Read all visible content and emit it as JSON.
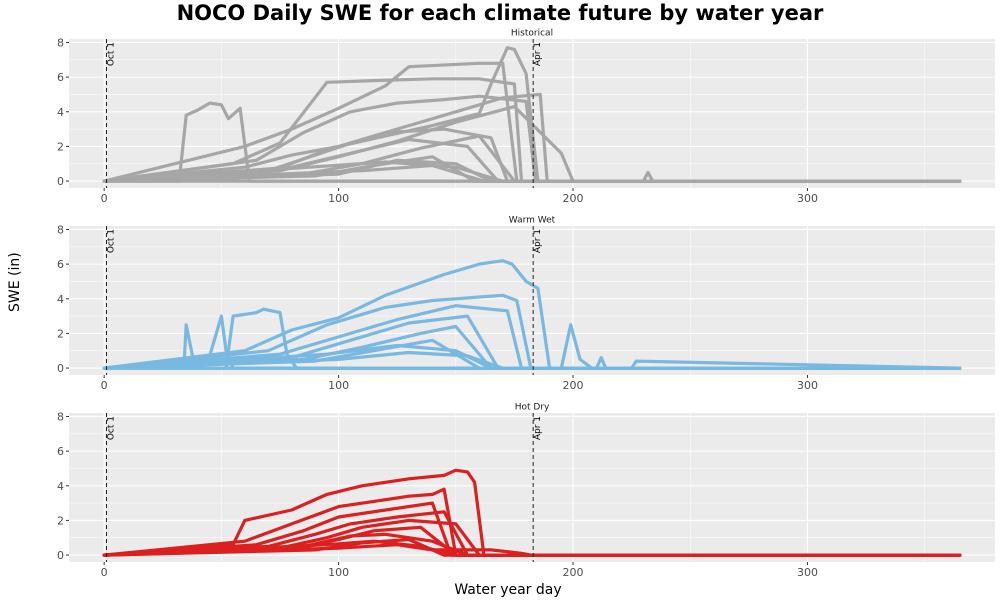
{
  "title": "NOCO Daily SWE for each climate future by water year",
  "xlabel": "Water year day",
  "ylabel": "SWE (in)",
  "chart_data": {
    "type": "line",
    "title": "NOCO Daily SWE for each climate future by water year",
    "xlabel": "Water year day",
    "ylabel": "SWE (in)",
    "xlim": [
      -15,
      380
    ],
    "ylim": [
      -0.4,
      8.2
    ],
    "x_ticks": [
      0,
      100,
      200,
      300
    ],
    "y_ticks": [
      0,
      2,
      4,
      6,
      8
    ],
    "grid": true,
    "vlines": [
      {
        "x": 1,
        "label": "Oct 1",
        "style": "dashed"
      },
      {
        "x": 183,
        "label": "Apr 1",
        "style": "dashed"
      }
    ],
    "panels": [
      {
        "name": "Historical",
        "color": "#a6a6a6",
        "series": [
          {
            "x": [
              0,
              32,
              35,
              40,
              45,
              50,
              53,
              58,
              62,
              200,
              365
            ],
            "y": [
              0,
              0,
              3.8,
              4.1,
              4.5,
              4.4,
              3.6,
              4.2,
              0,
              0,
              0
            ]
          },
          {
            "x": [
              0,
              60,
              80,
              100,
              120,
              140,
              160,
              165,
              172,
              175,
              180,
              185,
              200
            ],
            "y": [
              0,
              0.8,
              1.5,
              2.0,
              2.6,
              3.2,
              3.9,
              5.6,
              7.7,
              7.6,
              6.2,
              0,
              0
            ]
          },
          {
            "x": [
              0,
              55,
              75,
              95,
              115,
              140,
              160,
              175,
              178,
              365
            ],
            "y": [
              0,
              1.0,
              2.2,
              5.7,
              5.8,
              5.9,
              5.9,
              5.6,
              0,
              0
            ]
          },
          {
            "x": [
              0,
              60,
              80,
              100,
              120,
              130,
              160,
              170,
              176,
              365
            ],
            "y": [
              0,
              2.0,
              3.0,
              4.2,
              5.5,
              6.6,
              6.8,
              6.8,
              0,
              0
            ]
          },
          {
            "x": [
              0,
              65,
              85,
              105,
              125,
              145,
              160,
              180,
              184,
              200,
              365
            ],
            "y": [
              0,
              1.2,
              2.8,
              4.0,
              4.5,
              4.7,
              4.9,
              4.6,
              0,
              0,
              0
            ]
          },
          {
            "x": [
              0,
              70,
              90,
              110,
              130,
              150,
              170,
              186,
              189,
              200,
              365
            ],
            "y": [
              0,
              0.6,
              1.5,
              2.4,
              3.2,
              4.0,
              4.8,
              5.0,
              0,
              0,
              0
            ]
          },
          {
            "x": [
              0,
              75,
              100,
              125,
              150,
              175,
              195,
              200,
              365
            ],
            "y": [
              0,
              0.6,
              1.4,
              2.3,
              3.4,
              4.3,
              1.6,
              0,
              0
            ]
          },
          {
            "x": [
              0,
              70,
              95,
              120,
              145,
              165,
              172,
              365
            ],
            "y": [
              0,
              0.5,
              1.8,
              2.8,
              3.0,
              2.5,
              0,
              0
            ]
          },
          {
            "x": [
              0,
              80,
              105,
              130,
              155,
              168,
              365
            ],
            "y": [
              0,
              0.8,
              1.6,
              2.4,
              2.0,
              0,
              0
            ]
          },
          {
            "x": [
              0,
              85,
              110,
              135,
              160,
              175,
              365
            ],
            "y": [
              0,
              0.4,
              1.0,
              1.9,
              2.6,
              0,
              0
            ]
          },
          {
            "x": [
              0,
              90,
              115,
              140,
              158,
              365
            ],
            "y": [
              0,
              0.3,
              0.9,
              1.4,
              0,
              0
            ]
          },
          {
            "x": [
              0,
              100,
              125,
              150,
              165,
              365
            ],
            "y": [
              0,
              0.4,
              1.2,
              1.0,
              0,
              0
            ]
          },
          {
            "x": [
              0,
              110,
              140,
              162,
              365
            ],
            "y": [
              0,
              0.6,
              0.9,
              0,
              0
            ]
          },
          {
            "x": [
              0,
              120,
              150,
              170,
              365
            ],
            "y": [
              0,
              1.1,
              0.8,
              0,
              0
            ]
          },
          {
            "x": [
              0,
              230,
              232,
              234,
              365
            ],
            "y": [
              0,
              0,
              0.5,
              0,
              0
            ]
          }
        ]
      },
      {
        "name": "Warm Wet",
        "color": "#79b8e0",
        "series": [
          {
            "x": [
              0,
              34,
              35,
              38,
              45,
              50,
              52,
              55,
              300,
              365
            ],
            "y": [
              0,
              0,
              2.5,
              0.5,
              0.7,
              3.0,
              1.0,
              0,
              0,
              0
            ]
          },
          {
            "x": [
              0,
              52,
              55,
              65,
              68,
              75,
              78,
              82,
              365
            ],
            "y": [
              0,
              0,
              3.0,
              3.2,
              3.4,
              3.2,
              0.8,
              0,
              0
            ]
          },
          {
            "x": [
              0,
              60,
              80,
              100,
              120,
              145,
              160,
              170,
              174,
              180,
              185,
              190,
              365
            ],
            "y": [
              0,
              1.0,
              2.2,
              2.9,
              4.2,
              5.4,
              6.0,
              6.2,
              6.0,
              5.0,
              4.6,
              0,
              0
            ]
          },
          {
            "x": [
              0,
              70,
              95,
              120,
              140,
              150,
              160,
              170,
              176,
              182,
              365
            ],
            "y": [
              0,
              1.0,
              2.5,
              3.5,
              3.9,
              4.0,
              4.1,
              4.2,
              3.9,
              0,
              0
            ]
          },
          {
            "x": [
              0,
              75,
              100,
              125,
              150,
              172,
              178,
              365
            ],
            "y": [
              0,
              0.8,
              1.8,
              2.8,
              3.6,
              3.3,
              0,
              0
            ]
          },
          {
            "x": [
              0,
              80,
              105,
              130,
              155,
              168,
              365
            ],
            "y": [
              0,
              0.6,
              1.6,
              2.6,
              3.0,
              0,
              0
            ]
          },
          {
            "x": [
              0,
              85,
              110,
              135,
              150,
              165,
              365
            ],
            "y": [
              0,
              0.5,
              1.2,
              2.0,
              2.4,
              0,
              0
            ]
          },
          {
            "x": [
              0,
              90,
              115,
              140,
              160,
              365
            ],
            "y": [
              0,
              0.4,
              1.0,
              1.6,
              0,
              0
            ]
          },
          {
            "x": [
              0,
              95,
              125,
              150,
              165,
              365
            ],
            "y": [
              0,
              0.8,
              1.3,
              1.0,
              0,
              0
            ]
          },
          {
            "x": [
              0,
              100,
              130,
              155,
              170,
              365
            ],
            "y": [
              0,
              0.5,
              0.9,
              0.7,
              0,
              0
            ]
          },
          {
            "x": [
              0,
              195,
              199,
              203,
              208,
              365
            ],
            "y": [
              0,
              0,
              2.5,
              0.5,
              0,
              0
            ]
          },
          {
            "x": [
              0,
              210,
              212,
              214,
              225,
              227,
              365
            ],
            "y": [
              0,
              0,
              0.6,
              0,
              0,
              0.4,
              0
            ]
          }
        ]
      },
      {
        "name": "Hot Dry",
        "color": "#dc1f1f",
        "series": [
          {
            "x": [
              0,
              55,
              60,
              80,
              95,
              110,
              130,
              145,
              150,
              155,
              158,
              162,
              365
            ],
            "y": [
              0,
              0.6,
              2.0,
              2.6,
              3.5,
              4.0,
              4.4,
              4.6,
              4.9,
              4.8,
              4.2,
              0,
              0
            ]
          },
          {
            "x": [
              0,
              60,
              80,
              100,
              115,
              130,
              140,
              145,
              150,
              365
            ],
            "y": [
              0,
              0.8,
              1.8,
              2.8,
              3.1,
              3.4,
              3.5,
              3.8,
              0,
              0
            ]
          },
          {
            "x": [
              0,
              65,
              85,
              100,
              120,
              140,
              148,
              365
            ],
            "y": [
              0,
              0.6,
              1.4,
              2.2,
              2.6,
              3.0,
              0,
              0
            ]
          },
          {
            "x": [
              0,
              70,
              90,
              105,
              125,
              145,
              155,
              365
            ],
            "y": [
              0,
              0.5,
              1.2,
              1.8,
              2.2,
              2.5,
              0,
              0
            ]
          },
          {
            "x": [
              0,
              75,
              95,
              110,
              130,
              150,
              160,
              365
            ],
            "y": [
              0,
              0.4,
              1.0,
              1.6,
              2.0,
              1.8,
              0,
              0
            ]
          },
          {
            "x": [
              0,
              80,
              100,
              115,
              135,
              150,
              365
            ],
            "y": [
              0,
              0.3,
              0.9,
              1.4,
              1.6,
              0,
              0
            ]
          },
          {
            "x": [
              0,
              85,
              105,
              120,
              140,
              155,
              365
            ],
            "y": [
              0,
              0.5,
              1.1,
              1.2,
              0.8,
              0,
              0
            ]
          },
          {
            "x": [
              0,
              90,
              110,
              130,
              145,
              365
            ],
            "y": [
              0,
              0.3,
              0.7,
              0.9,
              0,
              0
            ]
          },
          {
            "x": [
              0,
              95,
              115,
              135,
              150,
              365
            ],
            "y": [
              0,
              0.6,
              0.8,
              0.5,
              0,
              0
            ]
          },
          {
            "x": [
              0,
              100,
              125,
              140,
              165,
              178,
              182,
              365
            ],
            "y": [
              0,
              0.4,
              0.6,
              0.3,
              0.3,
              0.1,
              0,
              0
            ]
          }
        ]
      }
    ]
  }
}
